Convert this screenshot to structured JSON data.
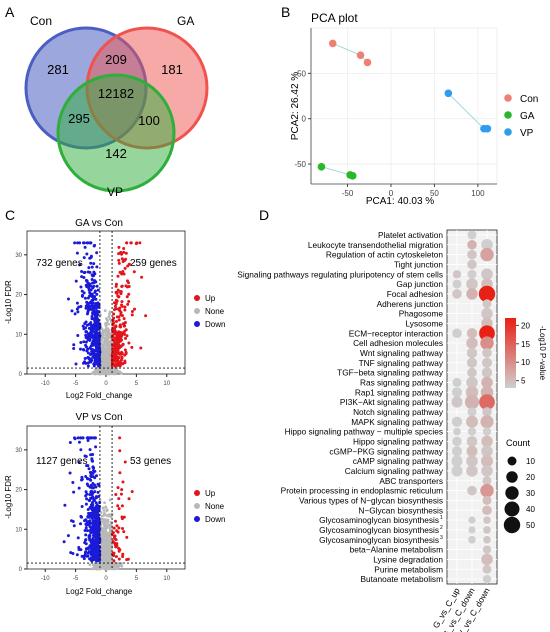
{
  "panels": {
    "a": "A",
    "b": "B",
    "c": "C",
    "d": "D"
  },
  "venn": {
    "sets": [
      {
        "name": "Con",
        "color": "#4a5fc1"
      },
      {
        "name": "GA",
        "color": "#ef5350"
      },
      {
        "name": "VP",
        "color": "#2eae3a"
      }
    ],
    "regions": {
      "con_only": "281",
      "ga_only": "181",
      "vp_only": "142",
      "con_ga": "209",
      "con_vp": "295",
      "ga_vp": "100",
      "all": "12182"
    }
  },
  "chart_data": [
    {
      "type": "scatter",
      "title": "PCA plot",
      "xlabel": "PCA1: 40.03 %",
      "ylabel": "PCA2: 26.42 %",
      "xlim": [
        -92,
        122
      ],
      "ylim": [
        -72,
        100
      ],
      "xticks": [
        -50,
        0,
        50,
        100
      ],
      "yticks": [
        -50,
        0,
        50
      ],
      "series": [
        {
          "name": "Con",
          "color": "#f07e74",
          "points": [
            [
              -67,
              83
            ],
            [
              -35,
              70
            ],
            [
              -27,
              62
            ]
          ]
        },
        {
          "name": "GA",
          "color": "#27b82a",
          "points": [
            [
              -80,
              -53
            ],
            [
              -47,
              -62
            ],
            [
              -44,
              -63
            ]
          ]
        },
        {
          "name": "VP",
          "color": "#2f9cf0",
          "points": [
            [
              66,
              28
            ],
            [
              107,
              -11
            ],
            [
              111,
              -11
            ]
          ]
        }
      ]
    },
    {
      "type": "scatter",
      "title": "GA vs Con",
      "xlabel": "Log2 Fold_change",
      "ylabel": "-Log10 FDR",
      "xlim": [
        -13,
        13
      ],
      "ylim": [
        0,
        36
      ],
      "xticks": [
        -10,
        -5,
        0,
        5,
        10
      ],
      "yticks": [
        0,
        10,
        20,
        30
      ],
      "annotations": {
        "left": "732 genes",
        "right": "259 genes"
      },
      "counts": {
        "down": 732,
        "up": 259
      },
      "legend": [
        "Up",
        "None",
        "Down"
      ]
    },
    {
      "type": "scatter",
      "title": "VP vs Con",
      "xlabel": "Log2 Fold_change",
      "ylabel": "-Log10 FDR",
      "xlim": [
        -13,
        13
      ],
      "ylim": [
        0,
        36
      ],
      "xticks": [
        -10,
        -5,
        0,
        5,
        10
      ],
      "yticks": [
        0,
        10,
        20,
        30
      ],
      "annotations": {
        "left": "1127 genes",
        "right": "53 genes"
      },
      "counts": {
        "down": 1127,
        "up": 53
      },
      "legend": [
        "Up",
        "None",
        "Down"
      ]
    },
    {
      "type": "scatter",
      "title": "",
      "columns": [
        "G_vs_C_up",
        "G_vs_C_down",
        "V_vs_C_down"
      ],
      "pathways": [
        "Platelet activation",
        "Leukocyte transendothelial migration",
        "Regulation of actin cytoskeleton",
        "Tight junction",
        "Signaling pathways regulating pluripotency of stem cells",
        "Gap junction",
        "Focal adhesion",
        "Adherens junction",
        "Phagosome",
        "Lysosome",
        "ECM−receptor interaction",
        "Cell adhesion molecules",
        "Wnt signaling pathway",
        "TNF signaling pathway",
        "TGF−beta signaling pathway",
        "Ras signaling pathway",
        "Rap1 signaling pathway",
        "PI3K−Akt signaling pathway",
        "Notch signaling pathway",
        "MAPK signaling pathway",
        "Hippo signaling pathway − multiple species",
        "Hippo signaling pathway",
        "cGMP−PKG signaling pathway",
        "cAMP signaling pathway",
        "Calcium signaling pathway",
        "ABC transporters",
        "Protein processing in endoplasmic reticulum",
        "Various types of N−glycan biosynthesis",
        "N−Glycan biosynthesis",
        "Glycosaminoglycan biosynthesis",
        "Glycosaminoglycan biosynthesis",
        "Glycosaminoglycan biosynthesis",
        "beta−Alanine metabolism",
        "Lysine degradation",
        "Purine metabolism",
        "Butanoate metabolism"
      ],
      "pathway_superscripts": {
        "29": "1",
        "30": "2",
        "31": "3"
      },
      "dots": [
        [
          1,
          0,
          10,
          3
        ],
        [
          1,
          1,
          12,
          6
        ],
        [
          1,
          2,
          12,
          4
        ],
        [
          1,
          3,
          12,
          4
        ],
        [
          2,
          1,
          20,
          3
        ],
        [
          2,
          2,
          30,
          8
        ],
        [
          0,
          4,
          8,
          4
        ],
        [
          1,
          4,
          10,
          3
        ],
        [
          2,
          4,
          20,
          4
        ],
        [
          0,
          5,
          10,
          3
        ],
        [
          1,
          5,
          20,
          4
        ],
        [
          2,
          5,
          20,
          5
        ],
        [
          0,
          6,
          12,
          4
        ],
        [
          1,
          6,
          20,
          6
        ],
        [
          2,
          6,
          50,
          22
        ],
        [
          2,
          7,
          10,
          4
        ],
        [
          2,
          8,
          20,
          4
        ],
        [
          2,
          9,
          20,
          5
        ],
        [
          0,
          10,
          12,
          3
        ],
        [
          1,
          10,
          15,
          5
        ],
        [
          2,
          10,
          45,
          24
        ],
        [
          1,
          11,
          20,
          5
        ],
        [
          2,
          11,
          30,
          10
        ],
        [
          1,
          12,
          15,
          4
        ],
        [
          2,
          12,
          12,
          4
        ],
        [
          1,
          13,
          14,
          4
        ],
        [
          2,
          13,
          14,
          4
        ],
        [
          1,
          14,
          12,
          4
        ],
        [
          2,
          14,
          15,
          4
        ],
        [
          0,
          15,
          10,
          3
        ],
        [
          1,
          15,
          20,
          4
        ],
        [
          2,
          15,
          20,
          6
        ],
        [
          0,
          16,
          14,
          3
        ],
        [
          1,
          16,
          25,
          5
        ],
        [
          2,
          16,
          25,
          6
        ],
        [
          0,
          17,
          18,
          4
        ],
        [
          1,
          17,
          35,
          6
        ],
        [
          2,
          17,
          45,
          14
        ],
        [
          1,
          18,
          10,
          3
        ],
        [
          2,
          18,
          12,
          4
        ],
        [
          0,
          19,
          15,
          3
        ],
        [
          1,
          19,
          22,
          5
        ],
        [
          2,
          19,
          28,
          6
        ],
        [
          0,
          20,
          6,
          3
        ],
        [
          1,
          20,
          8,
          3
        ],
        [
          2,
          20,
          8,
          3
        ],
        [
          0,
          21,
          12,
          3
        ],
        [
          1,
          21,
          16,
          4
        ],
        [
          2,
          21,
          20,
          5
        ],
        [
          0,
          22,
          14,
          3
        ],
        [
          1,
          22,
          18,
          5
        ],
        [
          2,
          22,
          20,
          4
        ],
        [
          0,
          23,
          18,
          3
        ],
        [
          1,
          23,
          20,
          4
        ],
        [
          2,
          23,
          22,
          5
        ],
        [
          0,
          24,
          18,
          3
        ],
        [
          1,
          24,
          20,
          4
        ],
        [
          2,
          24,
          20,
          4
        ],
        [
          2,
          25,
          10,
          4
        ],
        [
          1,
          26,
          12,
          4
        ],
        [
          2,
          26,
          30,
          9
        ],
        [
          2,
          27,
          10,
          5
        ],
        [
          2,
          28,
          12,
          5
        ],
        [
          1,
          29,
          5,
          3
        ],
        [
          2,
          29,
          6,
          4
        ],
        [
          1,
          30,
          5,
          3
        ],
        [
          2,
          30,
          6,
          4
        ],
        [
          1,
          31,
          6,
          3
        ],
        [
          2,
          31,
          6,
          4
        ],
        [
          2,
          32,
          8,
          4
        ],
        [
          2,
          33,
          20,
          5
        ],
        [
          2,
          34,
          10,
          4
        ],
        [
          2,
          35,
          8,
          3
        ]
      ],
      "color_legend": {
        "title": "-Log10 P-value",
        "ticks": [
          20,
          15,
          10,
          5
        ],
        "low": "#cfcfcf",
        "high": "#e82015"
      },
      "size_legend": {
        "title": "Count",
        "values": [
          10,
          20,
          30,
          40,
          50
        ]
      }
    }
  ]
}
